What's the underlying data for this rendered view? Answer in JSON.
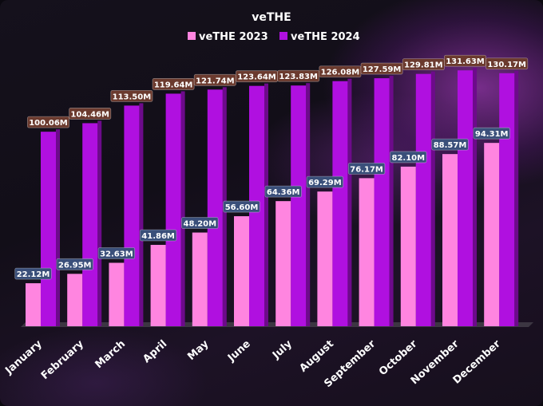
{
  "chart_data": {
    "type": "bar",
    "title": "veTHE",
    "categories": [
      "January",
      "February",
      "March",
      "April",
      "May",
      "June",
      "July",
      "August",
      "September",
      "October",
      "November",
      "December"
    ],
    "series": [
      {
        "name": "veTHE 2023",
        "color": "#ff85e0",
        "values": [
          22.12,
          26.95,
          32.63,
          41.86,
          48.2,
          56.6,
          64.36,
          69.29,
          76.17,
          82.1,
          88.57,
          94.31
        ],
        "labels": [
          "22.12M",
          "26.95M",
          "32.63M",
          "41.86M",
          "48.20M",
          "56.60M",
          "64.36M",
          "69.29M",
          "76.17M",
          "82.10M",
          "88.57M",
          "94.31M"
        ],
        "label_box_color": "#3a4f7a"
      },
      {
        "name": "veTHE 2024",
        "color": "#b010e0",
        "values": [
          100.06,
          104.46,
          113.5,
          119.64,
          121.74,
          123.64,
          123.83,
          126.08,
          127.59,
          129.81,
          131.63,
          130.17
        ],
        "labels": [
          "100.06M",
          "104.46M",
          "113.50M",
          "119.64M",
          "121.74M",
          "123.64M",
          "123.83M",
          "126.08M",
          "127.59M",
          "129.81M",
          "131.63M",
          "130.17M"
        ],
        "label_box_color": "#6b3a2e"
      }
    ],
    "ylim": [
      0,
      135
    ],
    "grid": false,
    "legend": "top-center"
  }
}
